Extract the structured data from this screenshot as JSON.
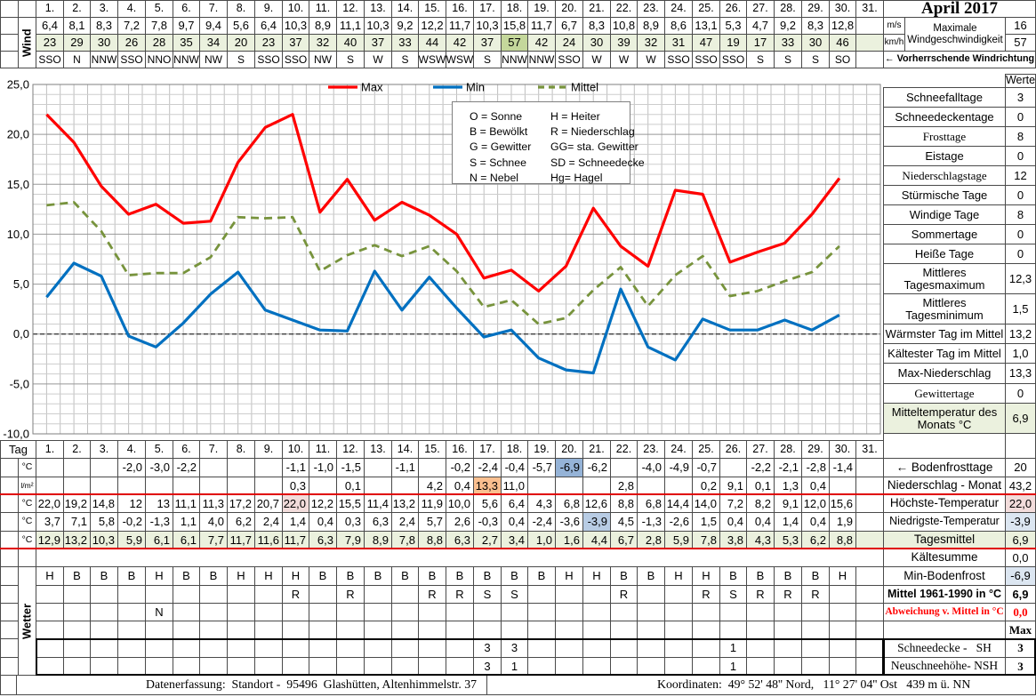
{
  "title": "April 2017",
  "days": [
    "1.",
    "2.",
    "3.",
    "4.",
    "5.",
    "6.",
    "7.",
    "8.",
    "9.",
    "10.",
    "11.",
    "12.",
    "13.",
    "14.",
    "15.",
    "16.",
    "17.",
    "18.",
    "19.",
    "20.",
    "21.",
    "22.",
    "23.",
    "24.",
    "25.",
    "26.",
    "27.",
    "28.",
    "29.",
    "30.",
    "31."
  ],
  "wind": {
    "label": "Wind",
    "unit_ms": "m/s",
    "unit_kmh": "km/h",
    "ms": [
      "6,4",
      "8,1",
      "8,3",
      "7,2",
      "7,8",
      "9,7",
      "9,4",
      "5,6",
      "6,4",
      "10,3",
      "8,9",
      "11,1",
      "10,3",
      "9,2",
      "12,2",
      "11,7",
      "10,3",
      "15,8",
      "11,7",
      "6,7",
      "8,3",
      "10,8",
      "8,9",
      "8,6",
      "13,1",
      "5,3",
      "4,7",
      "9,2",
      "8,3",
      "12,8"
    ],
    "kmh": [
      "23",
      "29",
      "30",
      "26",
      "28",
      "35",
      "34",
      "20",
      "23",
      "37",
      "32",
      "40",
      "37",
      "33",
      "44",
      "42",
      "37",
      "57",
      "42",
      "24",
      "30",
      "39",
      "32",
      "31",
      "47",
      "19",
      "17",
      "33",
      "30",
      "46"
    ],
    "dir": [
      "SSO",
      "N",
      "NNW",
      "SSO",
      "NNO",
      "NNW",
      "NW",
      "S",
      "SSO",
      "SSO",
      "NW",
      "S",
      "W",
      "S",
      "WSW",
      "WSW",
      "S",
      "NNW",
      "NNW",
      "SSO",
      "W",
      "W",
      "W",
      "SSO",
      "SSO",
      "SSO",
      "S",
      "S",
      "S",
      "SO"
    ],
    "kmh_highlight_day": 18,
    "kmh_highlight_color": "#c4d79b",
    "row_bg": "#ebf1de",
    "max_label": "Maximale\nWindgeschwindigkeit",
    "max_ms": "16",
    "max_kmh": "57",
    "prevailing": "← Vorherrschende Windrichtung"
  },
  "chart_data": {
    "type": "line",
    "x": [
      1,
      2,
      3,
      4,
      5,
      6,
      7,
      8,
      9,
      10,
      11,
      12,
      13,
      14,
      15,
      16,
      17,
      18,
      19,
      20,
      21,
      22,
      23,
      24,
      25,
      26,
      27,
      28,
      29,
      30
    ],
    "series": [
      {
        "name": "Max",
        "color": "#ff0000",
        "dash": false,
        "values": [
          22.0,
          19.2,
          14.8,
          12,
          13,
          11.1,
          11.3,
          17.2,
          20.7,
          22.0,
          12.2,
          15.5,
          11.4,
          13.2,
          11.9,
          10.0,
          5.6,
          6.4,
          4.3,
          6.8,
          12.6,
          8.8,
          6.8,
          14.4,
          14.0,
          7.2,
          8.2,
          9.1,
          12.0,
          15.6
        ]
      },
      {
        "name": "Min",
        "color": "#0070c0",
        "dash": false,
        "values": [
          3.7,
          7.1,
          5.8,
          -0.2,
          -1.3,
          1.1,
          4.0,
          6.2,
          2.4,
          1.4,
          0.4,
          0.3,
          6.3,
          2.4,
          5.7,
          2.6,
          -0.3,
          0.4,
          -2.4,
          -3.6,
          -3.9,
          4.5,
          -1.3,
          -2.6,
          1.5,
          0.4,
          0.4,
          1.4,
          0.4,
          1.9
        ]
      },
      {
        "name": "Mittel",
        "color": "#77933c",
        "dash": true,
        "values": [
          12.9,
          13.2,
          10.3,
          5.9,
          6.1,
          6.1,
          7.7,
          11.7,
          11.6,
          11.7,
          6.3,
          7.9,
          8.9,
          7.8,
          8.8,
          6.3,
          2.7,
          3.4,
          1.0,
          1.6,
          4.4,
          6.7,
          2.8,
          5.9,
          7.8,
          3.8,
          4.3,
          5.3,
          6.2,
          8.8
        ]
      }
    ],
    "ylim": [
      -10,
      25
    ],
    "ytick_labels": [
      "25,0",
      "20,0",
      "15,0",
      "10,0",
      "5,0",
      "0,0",
      "-5,0",
      "-10,0"
    ],
    "grid": "fine",
    "legend_position": "top-inside",
    "code_legend": [
      [
        "O = Sonne",
        "H = Heiter"
      ],
      [
        "B = Bewölkt",
        "R = Niederschlag"
      ],
      [
        "G = Gewitter",
        "GG= sta. Gewitter"
      ],
      [
        "S = Schnee",
        "SD = Schneedecke"
      ],
      [
        "N = Nebel",
        "Hg= Hagel"
      ]
    ]
  },
  "stats": {
    "header": "Werte",
    "rows": [
      {
        "label": "Schneefalltage",
        "value": "3"
      },
      {
        "label": "Schneedeckentage",
        "value": "0"
      },
      {
        "label": "Frosttage",
        "value": "8",
        "serif": true
      },
      {
        "label": "Eistage",
        "value": "0"
      },
      {
        "label": "Niederschlagstage",
        "value": "12",
        "serif": true
      },
      {
        "label": "Stürmische Tage",
        "value": "0"
      },
      {
        "label": "Windige Tage",
        "value": "8"
      },
      {
        "label": "Sommertage",
        "value": "0"
      },
      {
        "label": "Heiße Tage",
        "value": "0"
      },
      {
        "label": "Mittleres Tagesmaximum",
        "value": "12,3",
        "tall": true
      },
      {
        "label": "Mittleres Tagesminimum",
        "value": "1,5",
        "tall": true
      },
      {
        "label": "Wärmster Tag im Mittel",
        "value": "13,2"
      },
      {
        "label": "Kältester Tag im Mittel",
        "value": "1,0"
      },
      {
        "label": "Max-Niederschlag",
        "value": "13,3"
      },
      {
        "label": "Gewittertage",
        "value": "0",
        "serif": true
      },
      {
        "label": "Mitteltemperatur des Monats °C",
        "value": "6,9",
        "tall": true,
        "bg": "#ebf1de"
      }
    ]
  },
  "daily": {
    "tag_label": "Tag",
    "wetter_label": "Wetter",
    "rows": [
      {
        "unit": "°C",
        "key": "bodenfrost",
        "align": "right",
        "values": {
          "4": "-2,0",
          "5": "-3,0",
          "6": "-2,2",
          "10": "-1,1",
          "11": "-1,0",
          "12": "-1,5",
          "14": "-1,1",
          "16": "-0,2",
          "17": "-2,4",
          "18": "-0,4",
          "19": "-5,7",
          "20": "-6,9",
          "21": "-6,2",
          "23": "-4,0",
          "24": "-4,9",
          "25": "-0,7",
          "27": "-2,2",
          "28": "-2,1",
          "29": "-2,8",
          "30": "-1,4"
        },
        "highlight": {
          "20": "#95b3d7"
        }
      },
      {
        "unit": "l/m²",
        "key": "niederschlag",
        "align": "right",
        "values": {
          "10": "0,3",
          "12": "0,1",
          "15": "4,2",
          "16": "0,4",
          "17": "13,3",
          "18": "11,0",
          "22": "2,8",
          "25": "0,2",
          "26": "9,1",
          "27": "0,1",
          "28": "1,3",
          "29": "0,4"
        },
        "highlight": {
          "17": "#fabf8f"
        }
      },
      {
        "unit": "°C",
        "key": "hoechste",
        "align": "right",
        "values": [
          "22,0",
          "19,2",
          "14,8",
          "12",
          "13",
          "11,1",
          "11,3",
          "17,2",
          "20,7",
          "22,0",
          "12,2",
          "15,5",
          "11,4",
          "13,2",
          "11,9",
          "10,0",
          "5,6",
          "6,4",
          "4,3",
          "6,8",
          "12,6",
          "8,8",
          "6,8",
          "14,4",
          "14,0",
          "7,2",
          "8,2",
          "9,1",
          "12,0",
          "15,6"
        ],
        "highlight": {
          "10": "#f2dcdb"
        }
      },
      {
        "unit": "°C",
        "key": "niedrigste",
        "align": "right",
        "values": [
          "3,7",
          "7,1",
          "5,8",
          "-0,2",
          "-1,3",
          "1,1",
          "4,0",
          "6,2",
          "2,4",
          "1,4",
          "0,4",
          "0,3",
          "6,3",
          "2,4",
          "5,7",
          "2,6",
          "-0,3",
          "0,4",
          "-2,4",
          "-3,6",
          "-3,9",
          "4,5",
          "-1,3",
          "-2,6",
          "1,5",
          "0,4",
          "0,4",
          "1,4",
          "0,4",
          "1,9"
        ],
        "highlight": {
          "21": "#b8cce4"
        }
      },
      {
        "unit": "°C",
        "key": "tagesmittel",
        "align": "right",
        "values": [
          "12,9",
          "13,2",
          "10,3",
          "5,9",
          "6,1",
          "6,1",
          "7,7",
          "11,7",
          "11,6",
          "11,7",
          "6,3",
          "7,9",
          "8,9",
          "7,8",
          "8,8",
          "6,3",
          "2,7",
          "3,4",
          "1,0",
          "1,6",
          "4,4",
          "6,7",
          "2,8",
          "5,9",
          "7,8",
          "3,8",
          "4,3",
          "5,3",
          "6,2",
          "8,8"
        ],
        "bg": "#ebf1de"
      }
    ],
    "wetter_rows": [
      {
        "key": "zustand",
        "values": [
          "H",
          "B",
          "B",
          "B",
          "H",
          "B",
          "B",
          "H",
          "H",
          "H",
          "B",
          "B",
          "B",
          "B",
          "B",
          "B",
          "B",
          "B",
          "B",
          "H",
          "H",
          "B",
          "B",
          "H",
          "H",
          "B",
          "B",
          "B",
          "B",
          "H"
        ]
      },
      {
        "key": "niederschlagsart",
        "values": {
          "10": "R",
          "12": "R",
          "15": "R",
          "16": "R",
          "17": "S",
          "18": "S",
          "22": "R",
          "25": "R",
          "26": "S",
          "27": "R",
          "28": "R",
          "29": "R"
        }
      },
      {
        "key": "nebel",
        "values": {
          "5": "N"
        }
      },
      {
        "key": "leer",
        "values": {}
      }
    ],
    "snow_rows": [
      {
        "key": "schneedecke",
        "values": {
          "17": "3",
          "18": "3",
          "26": "1"
        }
      },
      {
        "key": "neuschnee",
        "values": {
          "17": "3",
          "18": "1",
          "26": "1"
        }
      }
    ]
  },
  "summary": {
    "rows": [
      {
        "label": "← Bodenfrosttage",
        "value": "20"
      },
      {
        "label": "Niederschlag - Monat",
        "value": "43,2"
      },
      {
        "label": "Höchste-Temperatur",
        "value": "22,0",
        "value_bg": "#f2dcdb"
      },
      {
        "label": "Niedrigste-Temperatur",
        "value": "-3,9",
        "value_bg": "#dce6f1"
      },
      {
        "label": "Tagesmittel",
        "value": "6,9",
        "bg": "#ebf1de"
      },
      {
        "label": "Kältesumme",
        "value": "0,0"
      },
      {
        "label": "Min-Bodenfrost",
        "value": "-6,9",
        "value_bg": "#dce6f1"
      },
      {
        "label": "Mittel 1961-1990 in °C",
        "value": "6,9",
        "bold": true
      },
      {
        "label": "Abweichung v. Mittel in °C",
        "value": "0,0",
        "serif": true,
        "bold": true,
        "color": "#ff0000"
      },
      {
        "label": "",
        "value": "Max",
        "serif": true,
        "bold": true
      },
      {
        "label": "Schneedecke -   SH",
        "value": "3",
        "serif": true,
        "value_bold": true
      },
      {
        "label": "Neuschneehöhe- NSH",
        "value": "3",
        "serif": true,
        "value_bold": true
      }
    ]
  },
  "footer": {
    "left": "Datenerfassung:  Standort -  95496  Glashütten, Altenhimmelstr. 37",
    "right": "Koordinaten:  49° 52' 48'' Nord,   11° 27' 04'' Ost   439 m ü. NN"
  }
}
